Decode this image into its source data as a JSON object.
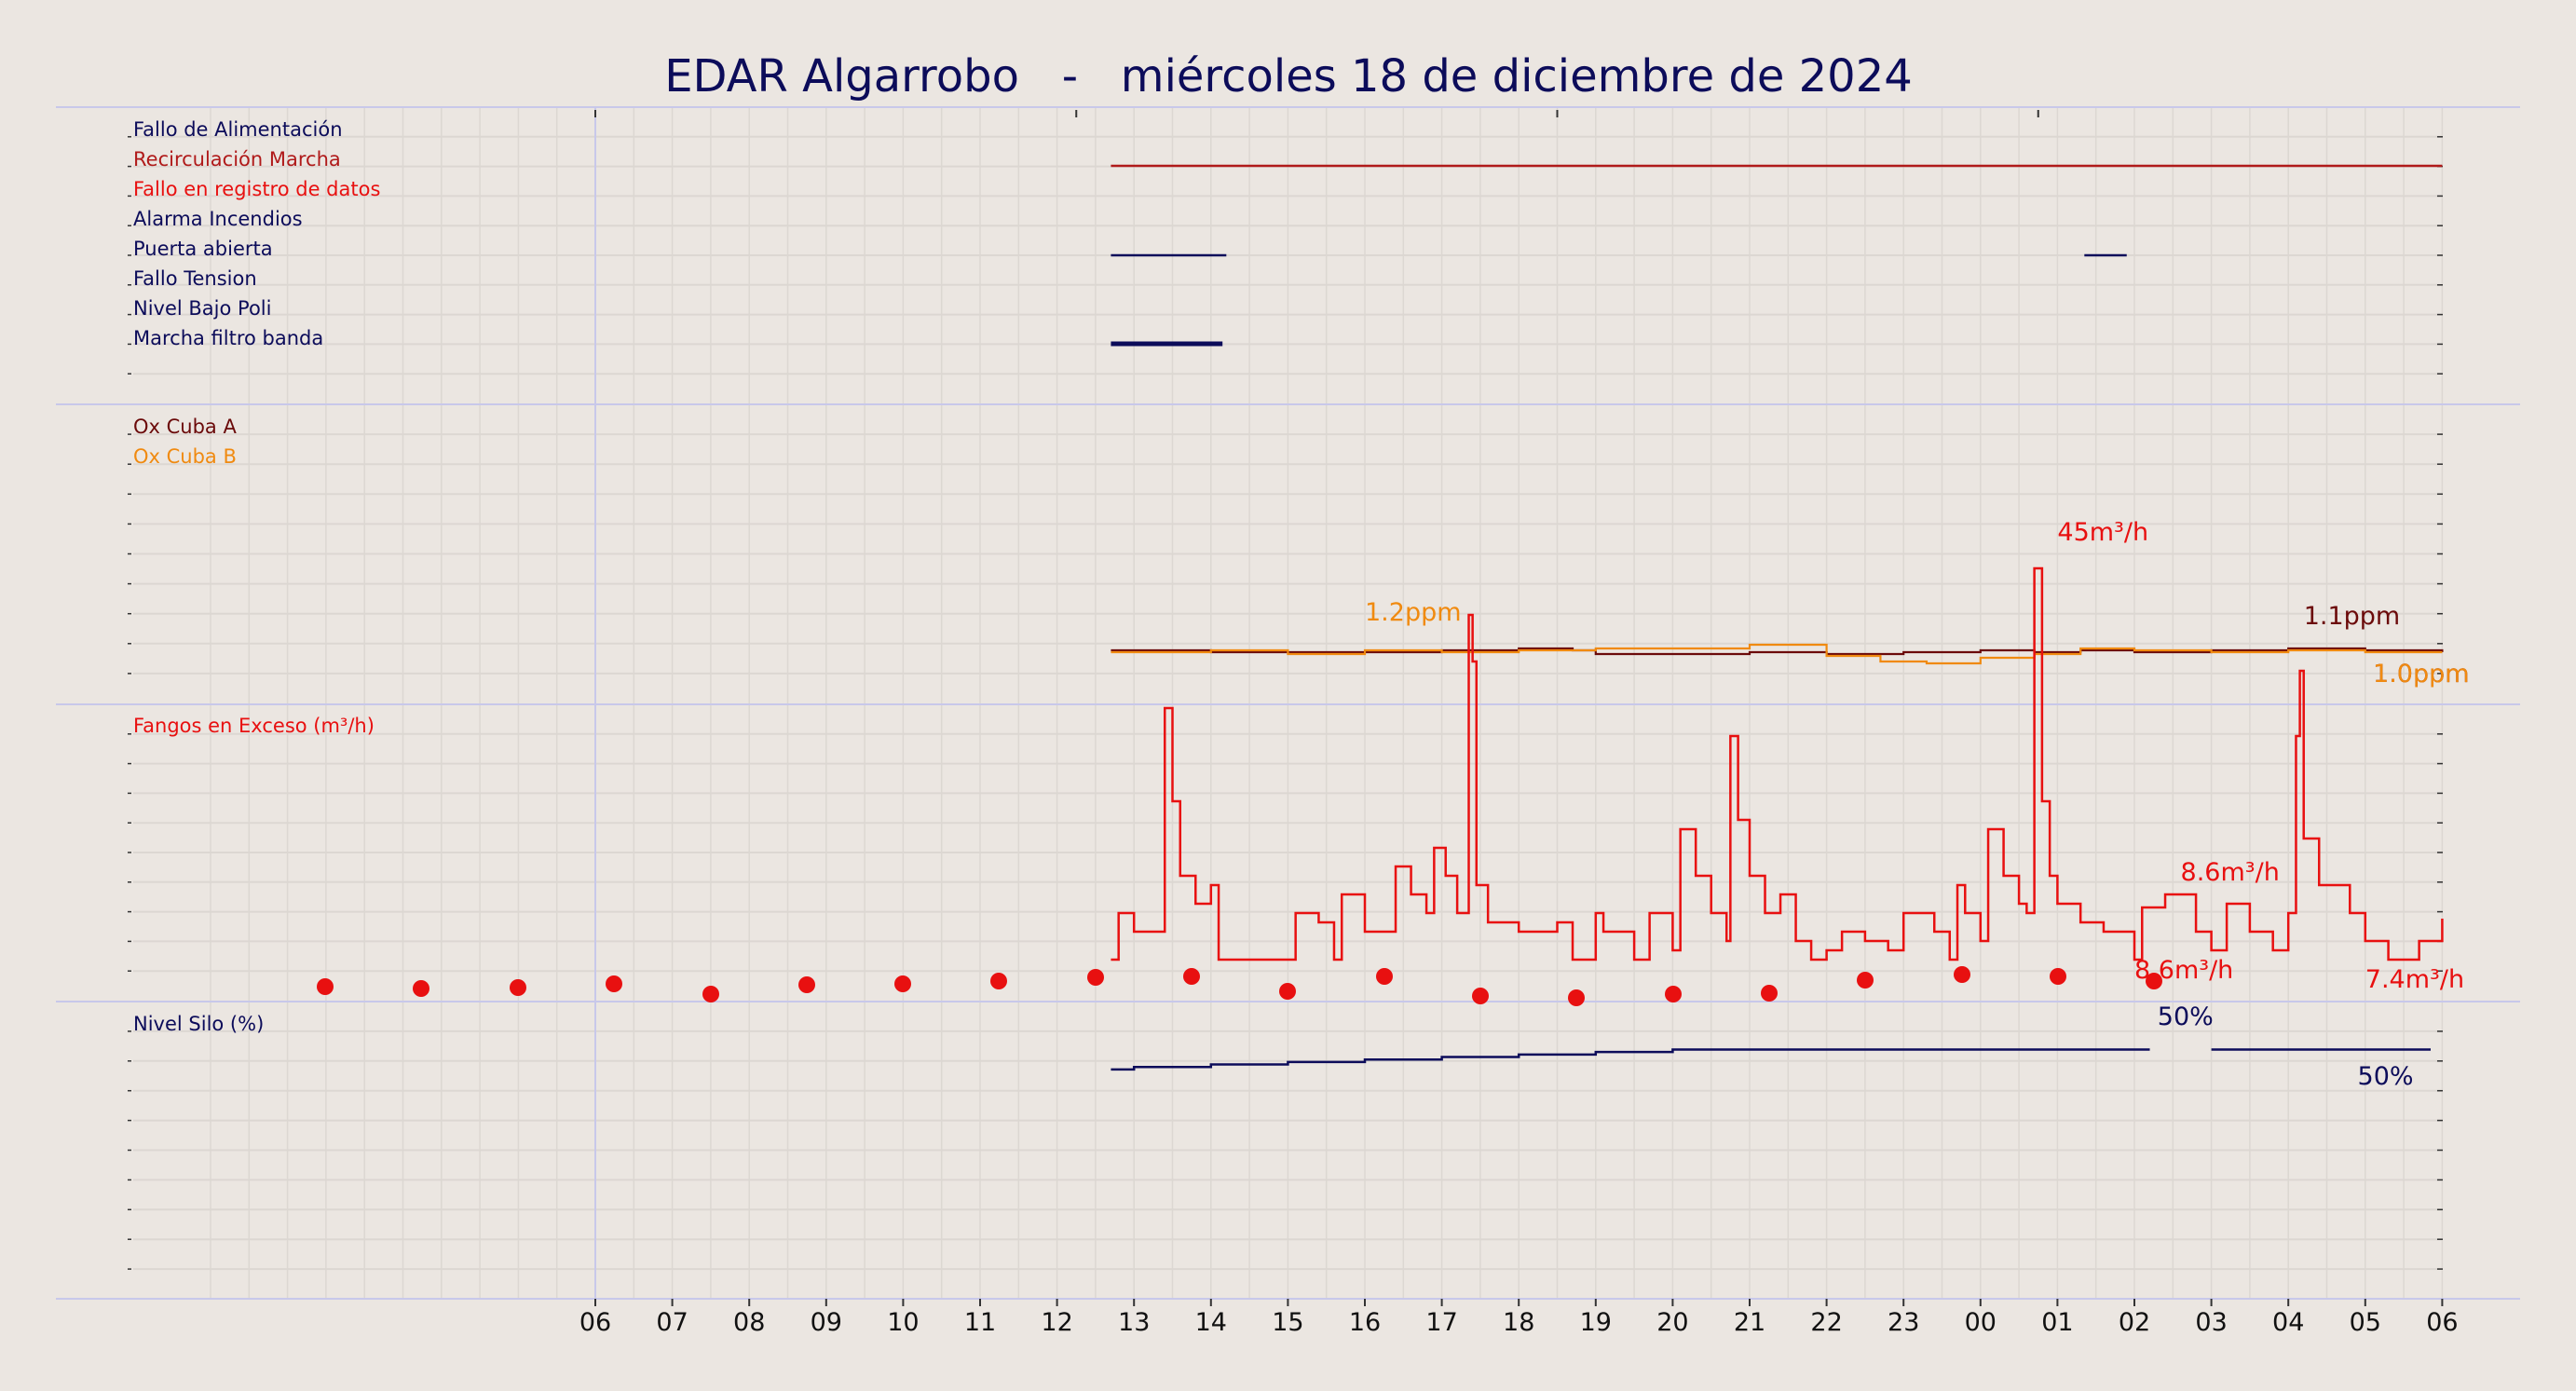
{
  "chart_data": {
    "type": "line",
    "title": "EDAR Algarrobo   -   miércoles 18 de diciembre de 2024",
    "x_tick_labels": [
      "06",
      "07",
      "08",
      "09",
      "10",
      "11",
      "12",
      "13",
      "14",
      "15",
      "16",
      "17",
      "18",
      "19",
      "20",
      "21",
      "22",
      "23",
      "00",
      "01",
      "02",
      "03",
      "04",
      "05",
      "06"
    ],
    "x_range_hours": [
      1,
      25
    ],
    "colors": {
      "navy": "#0c0c5a",
      "darkred": "#b01a1a",
      "red": "#e81010",
      "maroon": "#6b0a0a",
      "orange": "#f08a10",
      "grid": "#dcd7d2",
      "divider": "#c8c8ea"
    },
    "panels": [
      {
        "id": "alarms",
        "type": "timeline",
        "series": [
          {
            "name": "Fallo de Alimentación",
            "color": "#0c0c5a",
            "segments": []
          },
          {
            "name": "Recirculación Marcha",
            "color": "#b01a1a",
            "segments": [
              [
                12.7,
                30.0
              ]
            ]
          },
          {
            "name": "Fallo en registro de datos",
            "color": "#e81010",
            "segments": []
          },
          {
            "name": "Alarma Incendios",
            "color": "#0c0c5a",
            "segments": []
          },
          {
            "name": "Puerta abierta",
            "color": "#0c0c5a",
            "segments": [
              [
                12.7,
                14.2
              ],
              [
                25.35,
                25.9
              ]
            ]
          },
          {
            "name": "Fallo Tension",
            "color": "#0c0c5a",
            "segments": []
          },
          {
            "name": "Nivel Bajo Poli",
            "color": "#0c0c5a",
            "segments": []
          },
          {
            "name": "Marcha filtro banda",
            "color": "#0c0c5a",
            "segments": [
              [
                12.7,
                14.15
              ]
            ]
          }
        ]
      },
      {
        "id": "oxygen",
        "type": "line",
        "unit": "ppm",
        "ylim": [
          0,
          10
        ],
        "series": [
          {
            "name": "Ox Cuba A",
            "color": "#6b0a0a",
            "points": [
              [
                12.7,
                1.05
              ],
              [
                14.0,
                1.0
              ],
              [
                15.0,
                1.0
              ],
              [
                16.0,
                1.0
              ],
              [
                17.0,
                1.05
              ],
              [
                18.0,
                1.1
              ],
              [
                18.7,
                1.05
              ],
              [
                19.0,
                0.95
              ],
              [
                20.0,
                0.95
              ],
              [
                21.0,
                1.0
              ],
              [
                22.0,
                0.95
              ],
              [
                23.0,
                1.0
              ],
              [
                24.0,
                1.05
              ],
              [
                24.7,
                1.0
              ],
              [
                25.3,
                1.05
              ],
              [
                26.0,
                1.0
              ],
              [
                27.0,
                1.05
              ],
              [
                28.0,
                1.1
              ],
              [
                29.0,
                1.05
              ],
              [
                30.0,
                1.0
              ]
            ]
          },
          {
            "name": "Ox Cuba B",
            "color": "#f08a10",
            "points": [
              [
                12.7,
                1.0
              ],
              [
                14.0,
                1.05
              ],
              [
                15.0,
                0.95
              ],
              [
                16.0,
                1.05
              ],
              [
                17.0,
                1.0
              ],
              [
                18.0,
                1.05
              ],
              [
                19.0,
                1.1
              ],
              [
                20.0,
                1.1
              ],
              [
                21.0,
                1.2
              ],
              [
                22.0,
                0.9
              ],
              [
                22.7,
                0.75
              ],
              [
                23.3,
                0.7
              ],
              [
                24.0,
                0.85
              ],
              [
                24.7,
                0.95
              ],
              [
                25.3,
                1.1
              ],
              [
                26.0,
                1.05
              ],
              [
                27.0,
                1.0
              ],
              [
                28.0,
                1.05
              ],
              [
                29.0,
                1.0
              ],
              [
                30.0,
                1.0
              ]
            ]
          }
        ],
        "annotations": [
          {
            "text": "1.2ppm",
            "color": "#f08a10",
            "x": 16.0,
            "y": 1.85
          },
          {
            "text": "1.1ppm",
            "color": "#6b0a0a",
            "x": 28.2,
            "y": 1.75
          },
          {
            "text": "1.0ppm",
            "color": "#6b0a0a",
            "x": 29.1,
            "y": 0.2
          },
          {
            "text": "1.0ppm",
            "color": "#f08a10",
            "x": 29.1,
            "y": 0.2
          }
        ]
      },
      {
        "id": "fangos",
        "type": "line",
        "name": "Fangos en Exceso (m³/h)",
        "unit": "m³/h",
        "ylim": [
          0,
          100
        ],
        "color": "#e81010",
        "dots": [
          [
            7.5,
            4.5
          ],
          [
            8.75,
            4.2
          ],
          [
            10.0,
            4.4
          ],
          [
            11.25,
            5.5
          ],
          [
            12.5,
            2.5
          ],
          [
            13.75,
            5.5
          ],
          [
            15.0,
            5.8
          ],
          [
            16.25,
            6.0
          ],
          [
            17.5,
            6.8
          ],
          [
            18.75,
            8.2
          ],
          [
            20.0,
            7.2
          ],
          [
            21.25,
            2.9
          ],
          [
            22.5,
            7.5
          ],
          [
            23.75,
            6.0
          ],
          [
            25.0,
            1.5
          ],
          [
            26.25,
            1.0
          ],
          [
            27.5,
            2.5
          ],
          [
            28.75,
            2.5
          ],
          [
            30.0,
            7.0
          ],
          [
            31.25,
            8.0
          ],
          [
            32.5,
            9.0
          ]
        ],
        "points": [
          [
            12.7,
            3.0
          ],
          [
            12.8,
            8.0
          ],
          [
            13.0,
            6.0
          ],
          [
            13.35,
            6.0
          ],
          [
            13.4,
            30.0
          ],
          [
            13.5,
            20.0
          ],
          [
            13.6,
            12.0
          ],
          [
            13.8,
            9.0
          ],
          [
            14.0,
            11.0
          ],
          [
            14.1,
            3.0
          ],
          [
            15.0,
            3.0
          ],
          [
            15.1,
            8.0
          ],
          [
            15.4,
            7.0
          ],
          [
            15.6,
            3.0
          ],
          [
            15.7,
            10.0
          ],
          [
            16.0,
            6.0
          ],
          [
            16.4,
            13.0
          ],
          [
            16.6,
            10.0
          ],
          [
            16.8,
            8.0
          ],
          [
            16.9,
            15.0
          ],
          [
            17.05,
            12.0
          ],
          [
            17.2,
            8.0
          ],
          [
            17.35,
            40.0
          ],
          [
            17.4,
            35.0
          ],
          [
            17.45,
            11.0
          ],
          [
            17.6,
            7.0
          ],
          [
            18.0,
            6.0
          ],
          [
            18.5,
            7.0
          ],
          [
            18.7,
            3.0
          ],
          [
            19.0,
            8.0
          ],
          [
            19.1,
            6.0
          ],
          [
            19.5,
            3.0
          ],
          [
            19.7,
            8.0
          ],
          [
            20.0,
            4.0
          ],
          [
            20.1,
            17.0
          ],
          [
            20.3,
            12.0
          ],
          [
            20.5,
            8.0
          ],
          [
            20.7,
            5.0
          ],
          [
            20.75,
            27.0
          ],
          [
            20.85,
            18.0
          ],
          [
            21.0,
            12.0
          ],
          [
            21.2,
            8.0
          ],
          [
            21.4,
            10.0
          ],
          [
            21.6,
            5.0
          ],
          [
            21.8,
            3.0
          ],
          [
            22.0,
            4.0
          ],
          [
            22.2,
            6.0
          ],
          [
            22.5,
            5.0
          ],
          [
            22.8,
            4.0
          ],
          [
            23.0,
            8.0
          ],
          [
            23.4,
            6.0
          ],
          [
            23.6,
            3.0
          ],
          [
            23.7,
            11.0
          ],
          [
            23.8,
            8.0
          ],
          [
            24.0,
            5.0
          ],
          [
            24.1,
            17.0
          ],
          [
            24.3,
            12.0
          ],
          [
            24.5,
            9.0
          ],
          [
            24.6,
            8.0
          ],
          [
            24.7,
            45.0
          ],
          [
            24.8,
            20.0
          ],
          [
            24.9,
            12.0
          ],
          [
            25.0,
            9.0
          ],
          [
            25.3,
            7.0
          ],
          [
            25.6,
            6.0
          ],
          [
            26.0,
            3.0
          ],
          [
            26.1,
            8.6
          ],
          [
            26.4,
            10.0
          ],
          [
            26.8,
            6.0
          ],
          [
            27.0,
            4.0
          ],
          [
            27.2,
            9.0
          ],
          [
            27.5,
            6.0
          ],
          [
            27.8,
            4.0
          ],
          [
            28.0,
            8.0
          ],
          [
            28.1,
            27.0
          ],
          [
            28.15,
            34.0
          ],
          [
            28.2,
            16.0
          ],
          [
            28.4,
            11.0
          ],
          [
            28.8,
            8.0
          ],
          [
            29.0,
            5.0
          ],
          [
            29.3,
            3.0
          ],
          [
            29.7,
            5.0
          ],
          [
            30.0,
            7.4
          ]
        ],
        "annotations": [
          {
            "text": "45m³/h",
            "color": "#e81010",
            "x": 25.0,
            "y": 48.0
          },
          {
            "text": "8.6m³/h",
            "color": "#e81010",
            "x": 26.6,
            "y": 11.5
          },
          {
            "text": "8.6m³/h",
            "color": "#e81010",
            "x": 26.0,
            "y": 1.0
          },
          {
            "text": "7.4m³/h",
            "color": "#e81010",
            "x": 29.0,
            "y": 0.0
          }
        ]
      },
      {
        "id": "silo",
        "type": "line",
        "name": "Nivel Silo (%)",
        "unit": "%",
        "ylim": [
          0,
          100
        ],
        "color": "#0c0c5a",
        "points": [
          [
            12.7,
            46.0
          ],
          [
            13.0,
            46.5
          ],
          [
            14.0,
            47.0
          ],
          [
            15.0,
            47.5
          ],
          [
            16.0,
            48.0
          ],
          [
            17.0,
            48.5
          ],
          [
            18.0,
            49.0
          ],
          [
            19.0,
            49.5
          ],
          [
            20.0,
            50.0
          ],
          [
            21.0,
            50.0
          ],
          [
            22.0,
            50.0
          ],
          [
            23.0,
            50.0
          ],
          [
            24.0,
            50.0
          ],
          [
            25.0,
            50.0
          ],
          [
            26.0,
            50.0
          ],
          [
            26.2,
            50.0
          ]
        ],
        "points_after_gap": [
          [
            27.0,
            50.0
          ],
          [
            30.0,
            50.0
          ]
        ],
        "annotations": [
          {
            "text": "50%",
            "color": "#0c0c5a",
            "x": 26.3,
            "y": 55.0
          },
          {
            "text": "50%",
            "color": "#0c0c5a",
            "x": 28.9,
            "y": 43.0
          }
        ]
      }
    ]
  }
}
